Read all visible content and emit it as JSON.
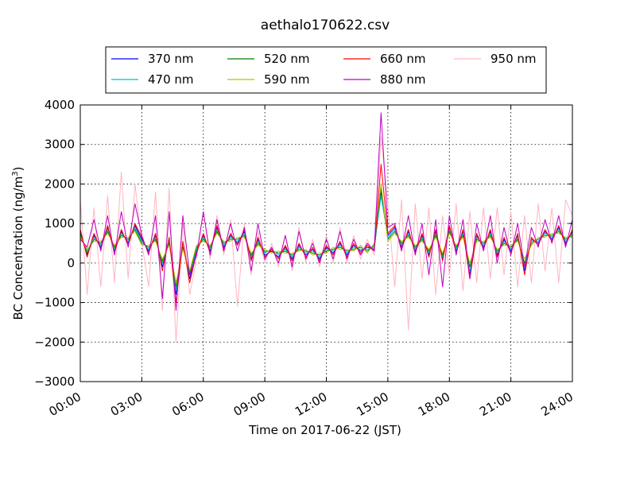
{
  "chart_data": {
    "type": "line",
    "title": "aethalo170622.csv",
    "xlabel": "Time on 2017-06-22 (JST)",
    "ylabel": "BC Concentration (ng/m",
    "ylabel_sup": "3",
    "ylabel_end": ")",
    "xlim": [
      "00:00",
      "24:00"
    ],
    "ylim": [
      -3000,
      4000
    ],
    "x_tick_labels": [
      "00:00",
      "03:00",
      "06:00",
      "09:00",
      "12:00",
      "15:00",
      "18:00",
      "21:00",
      "24:00"
    ],
    "y_tick_labels": [
      "4000",
      "3000",
      "2000",
      "1000",
      "0",
      "−1000",
      "−2000",
      "−3000"
    ],
    "grid": true,
    "legend_position": "top-center",
    "x": [
      "00:00",
      "00:20",
      "00:40",
      "01:00",
      "01:20",
      "01:40",
      "02:00",
      "02:20",
      "02:40",
      "03:00",
      "03:20",
      "03:40",
      "04:00",
      "04:20",
      "04:40",
      "05:00",
      "05:20",
      "05:40",
      "06:00",
      "06:20",
      "06:40",
      "07:00",
      "07:20",
      "07:40",
      "08:00",
      "08:20",
      "08:40",
      "09:00",
      "09:20",
      "09:40",
      "10:00",
      "10:20",
      "10:40",
      "11:00",
      "11:20",
      "11:40",
      "12:00",
      "12:20",
      "12:40",
      "13:00",
      "13:20",
      "13:40",
      "14:00",
      "14:20",
      "14:40",
      "15:00",
      "15:20",
      "15:40",
      "16:00",
      "16:20",
      "16:40",
      "17:00",
      "17:20",
      "17:40",
      "18:00",
      "18:20",
      "18:40",
      "19:00",
      "19:20",
      "19:40",
      "20:00",
      "20:20",
      "20:40",
      "21:00",
      "21:20",
      "21:40",
      "22:00",
      "22:20",
      "22:40",
      "23:00",
      "23:20",
      "23:40",
      "24:00"
    ],
    "series": [
      {
        "name": "370 nm",
        "color": "#0000ff",
        "values": [
          800,
          200,
          700,
          400,
          900,
          300,
          800,
          500,
          950,
          600,
          300,
          700,
          -100,
          600,
          -800,
          500,
          -400,
          300,
          700,
          300,
          900,
          400,
          700,
          500,
          800,
          100,
          600,
          200,
          300,
          150,
          400,
          100,
          450,
          200,
          350,
          100,
          400,
          250,
          500,
          200,
          450,
          300,
          400,
          350,
          1800,
          700,
          900,
          400,
          800,
          300,
          700,
          200,
          800,
          100,
          900,
          300,
          800,
          -300,
          700,
          400,
          800,
          200,
          600,
          300,
          700,
          -200,
          600,
          500,
          800,
          600,
          900,
          500,
          800
        ]
      },
      {
        "name": "470 nm",
        "color": "#00bfbf",
        "values": [
          700,
          300,
          650,
          450,
          850,
          350,
          750,
          550,
          900,
          550,
          350,
          650,
          0,
          550,
          -700,
          450,
          -300,
          350,
          650,
          350,
          850,
          450,
          650,
          550,
          750,
          150,
          550,
          250,
          350,
          200,
          350,
          150,
          400,
          250,
          300,
          150,
          350,
          300,
          450,
          250,
          400,
          350,
          350,
          400,
          1700,
          650,
          850,
          450,
          750,
          350,
          650,
          250,
          750,
          150,
          850,
          350,
          750,
          -200,
          650,
          450,
          750,
          250,
          550,
          350,
          650,
          -100,
          550,
          550,
          750,
          650,
          850,
          550,
          750
        ]
      },
      {
        "name": "520 nm",
        "color": "#008000",
        "values": [
          750,
          250,
          600,
          500,
          800,
          400,
          700,
          600,
          850,
          500,
          400,
          600,
          50,
          500,
          -600,
          400,
          -250,
          400,
          600,
          400,
          800,
          500,
          600,
          600,
          700,
          200,
          500,
          300,
          300,
          250,
          300,
          200,
          350,
          300,
          250,
          200,
          300,
          350,
          400,
          300,
          350,
          400,
          300,
          450,
          1900,
          600,
          800,
          500,
          700,
          400,
          600,
          300,
          700,
          200,
          800,
          400,
          700,
          -100,
          600,
          500,
          700,
          300,
          500,
          400,
          600,
          0,
          500,
          600,
          700,
          700,
          800,
          600,
          700
        ]
      },
      {
        "name": "590 nm",
        "color": "#bfbf00",
        "values": [
          650,
          350,
          550,
          550,
          750,
          450,
          650,
          650,
          800,
          450,
          450,
          550,
          100,
          450,
          -500,
          350,
          -200,
          450,
          550,
          450,
          750,
          550,
          550,
          650,
          650,
          250,
          450,
          350,
          250,
          300,
          250,
          250,
          300,
          350,
          200,
          250,
          250,
          400,
          350,
          350,
          300,
          450,
          250,
          500,
          2000,
          550,
          750,
          550,
          650,
          450,
          550,
          350,
          650,
          250,
          750,
          450,
          650,
          0,
          550,
          550,
          650,
          350,
          450,
          450,
          550,
          100,
          450,
          650,
          650,
          750,
          750,
          650,
          650
        ]
      },
      {
        "name": "660 nm",
        "color": "#ff0000",
        "values": [
          850,
          150,
          750,
          350,
          950,
          250,
          850,
          450,
          1000,
          650,
          250,
          750,
          -200,
          650,
          -1000,
          550,
          -500,
          250,
          750,
          250,
          950,
          350,
          750,
          450,
          850,
          50,
          650,
          150,
          350,
          100,
          450,
          50,
          500,
          150,
          400,
          50,
          450,
          200,
          550,
          150,
          500,
          250,
          450,
          300,
          2500,
          750,
          950,
          350,
          850,
          250,
          750,
          150,
          850,
          50,
          950,
          250,
          850,
          -400,
          750,
          350,
          850,
          150,
          650,
          250,
          750,
          -300,
          650,
          450,
          850,
          550,
          950,
          450,
          850
        ]
      },
      {
        "name": "880 nm",
        "color": "#bf00bf",
        "values": [
          600,
          400,
          1100,
          300,
          1200,
          200,
          1300,
          400,
          1500,
          700,
          200,
          1200,
          -900,
          1300,
          -1200,
          1200,
          -300,
          200,
          1300,
          200,
          1100,
          300,
          1000,
          300,
          900,
          -200,
          1000,
          100,
          400,
          0,
          700,
          -100,
          800,
          100,
          500,
          0,
          600,
          100,
          800,
          100,
          600,
          200,
          500,
          300,
          3800,
          900,
          1000,
          300,
          1200,
          200,
          1000,
          -300,
          1100,
          -600,
          1200,
          200,
          1100,
          -400,
          1000,
          300,
          1200,
          0,
          900,
          200,
          1000,
          -100,
          900,
          400,
          1100,
          500,
          1200,
          400,
          1100
        ]
      },
      {
        "name": "950 nm",
        "color": "#ffb6c1",
        "values": [
          1600,
          -800,
          1400,
          -600,
          1700,
          -500,
          2300,
          -400,
          2000,
          500,
          -600,
          1800,
          -1200,
          1900,
          -2000,
          1000,
          -800,
          100,
          1300,
          100,
          1200,
          200,
          1100,
          -1100,
          1000,
          -300,
          800,
          0,
          500,
          -100,
          700,
          -200,
          900,
          0,
          600,
          -100,
          700,
          0,
          900,
          0,
          700,
          100,
          600,
          200,
          3200,
          1500,
          -600,
          1600,
          -1700,
          1500,
          -400,
          1400,
          -800,
          1200,
          -300,
          1500,
          -700,
          1300,
          -500,
          1400,
          -400,
          1400,
          -300,
          1300,
          -600,
          1200,
          -500,
          1500,
          -200,
          1400,
          -500,
          1600,
          1200
        ]
      }
    ]
  }
}
